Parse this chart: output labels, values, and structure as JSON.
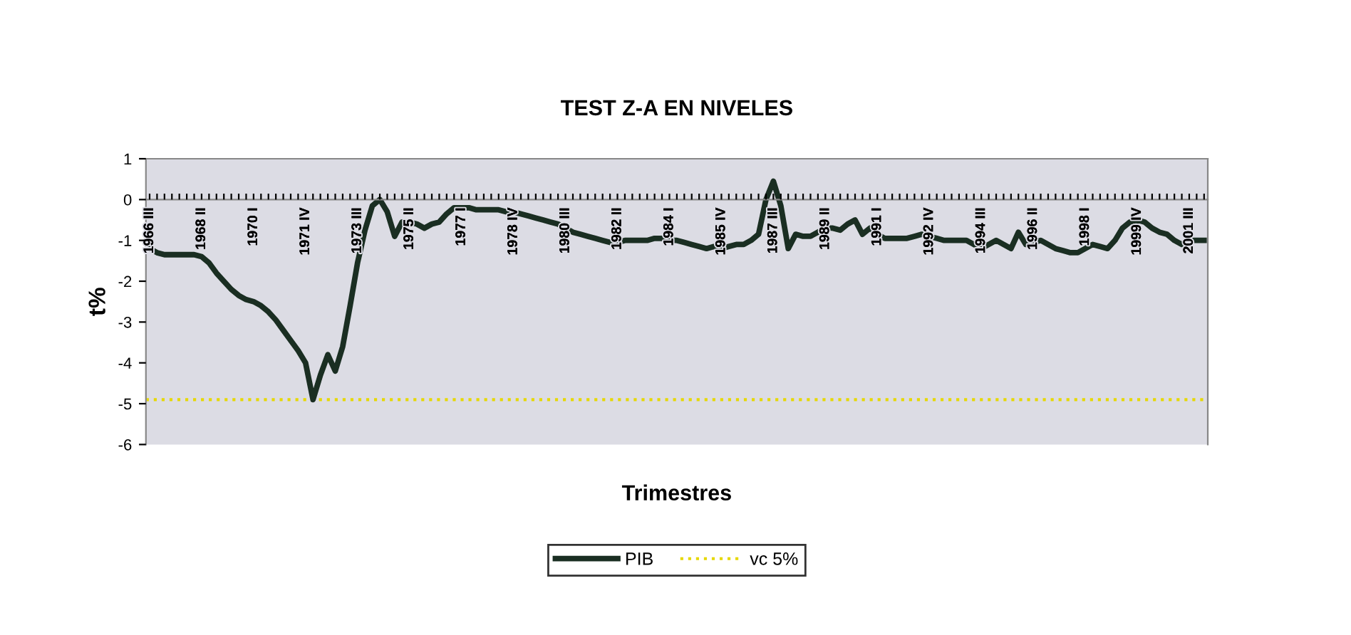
{
  "chart_data": {
    "type": "line",
    "title": "TEST Z-A EN NIVELES",
    "xlabel": "Trimestres",
    "ylabel": "t%",
    "categories": [
      "1966 III",
      null,
      null,
      null,
      null,
      null,
      null,
      "1968 II",
      null,
      null,
      null,
      null,
      null,
      null,
      "1970 I",
      null,
      null,
      null,
      null,
      null,
      null,
      "1971 IV",
      null,
      null,
      null,
      null,
      null,
      null,
      "1973 III",
      null,
      null,
      null,
      null,
      null,
      null,
      "1975 II",
      null,
      null,
      null,
      null,
      null,
      null,
      "1977 I",
      null,
      null,
      null,
      null,
      null,
      null,
      "1978 IV",
      null,
      null,
      null,
      null,
      null,
      null,
      "1980 III",
      null,
      null,
      null,
      null,
      null,
      null,
      "1982 II",
      null,
      null,
      null,
      null,
      null,
      null,
      "1984 I",
      null,
      null,
      null,
      null,
      null,
      null,
      "1985 IV",
      null,
      null,
      null,
      null,
      null,
      null,
      "1987 III",
      null,
      null,
      null,
      null,
      null,
      null,
      "1989 II",
      null,
      null,
      null,
      null,
      null,
      null,
      "1991 I",
      null,
      null,
      null,
      null,
      null,
      null,
      "1992 IV",
      null,
      null,
      null,
      null,
      null,
      null,
      "1994 III",
      null,
      null,
      null,
      null,
      null,
      null,
      "1996 II",
      null,
      null,
      null,
      null,
      null,
      null,
      "1998 I",
      null,
      null,
      null,
      null,
      null,
      null,
      "1999 IV",
      null,
      null,
      null,
      null,
      null,
      null,
      "2001 III",
      null,
      null
    ],
    "series": [
      {
        "name": "PIB",
        "color": "#1a2e22",
        "values": [
          -1.2,
          -1.3,
          -1.35,
          -1.35,
          -1.35,
          -1.35,
          -1.35,
          -1.4,
          -1.55,
          -1.8,
          -2.0,
          -2.2,
          -2.35,
          -2.45,
          -2.5,
          -2.6,
          -2.75,
          -2.95,
          -3.2,
          -3.45,
          -3.7,
          -4.0,
          -4.9,
          -4.3,
          -3.8,
          -4.2,
          -3.6,
          -2.6,
          -1.55,
          -0.75,
          -0.15,
          0.0,
          -0.3,
          -0.9,
          -0.55,
          -0.55,
          -0.6,
          -0.7,
          -0.6,
          -0.55,
          -0.35,
          -0.2,
          -0.2,
          -0.2,
          -0.25,
          -0.25,
          -0.25,
          -0.25,
          -0.3,
          -0.3,
          -0.35,
          -0.4,
          -0.45,
          -0.5,
          -0.55,
          -0.6,
          -0.7,
          -0.8,
          -0.85,
          -0.9,
          -0.95,
          -1.0,
          -1.05,
          -1.05,
          -1.0,
          -1.0,
          -1.0,
          -1.0,
          -0.95,
          -0.95,
          -1.0,
          -1.0,
          -1.05,
          -1.1,
          -1.15,
          -1.2,
          -1.15,
          -1.2,
          -1.15,
          -1.1,
          -1.1,
          -1.0,
          -0.85,
          0.0,
          0.45,
          -0.15,
          -1.2,
          -0.85,
          -0.9,
          -0.9,
          -0.8,
          -0.7,
          -0.7,
          -0.75,
          -0.6,
          -0.5,
          -0.85,
          -0.7,
          -0.85,
          -0.95,
          -0.95,
          -0.95,
          -0.95,
          -0.9,
          -0.85,
          -0.9,
          -0.95,
          -1.0,
          -1.0,
          -1.0,
          -1.0,
          -1.1,
          -1.2,
          -1.1,
          -1.0,
          -1.1,
          -1.2,
          -0.8,
          -1.1,
          -1.05,
          -1.0,
          -1.1,
          -1.2,
          -1.25,
          -1.3,
          -1.3,
          -1.2,
          -1.1,
          -1.15,
          -1.2,
          -1.0,
          -0.7,
          -0.55,
          -0.5,
          -0.55,
          -0.7,
          -0.8,
          -0.85,
          -1.0,
          -1.1,
          -1.0,
          -1.0,
          -1.0
        ]
      }
    ],
    "ref_lines": [
      {
        "axis": "y",
        "value": -4.9,
        "label": "vc 5%",
        "color": "#e6d800",
        "line_style": "dotted"
      }
    ],
    "ylim": [
      -6,
      1
    ],
    "yticks": [
      -6,
      -5,
      -4,
      -3,
      -2,
      -1,
      0,
      1
    ],
    "grid": false,
    "legend": "bottom",
    "line_style": "solid",
    "marker": "none"
  }
}
